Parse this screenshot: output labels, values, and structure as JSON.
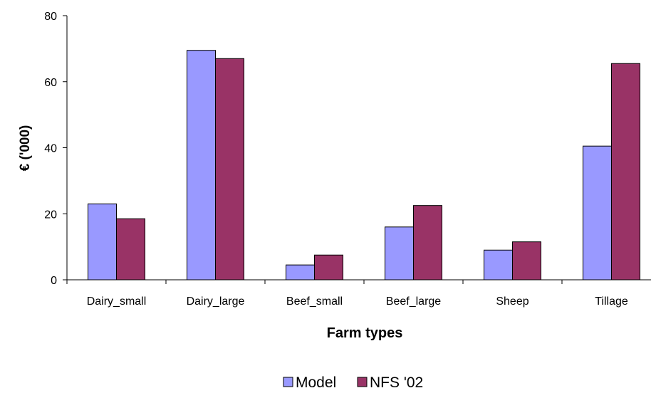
{
  "chart_data": {
    "type": "bar",
    "title": "",
    "xlabel": "Farm types",
    "ylabel": "€ ('000)",
    "categories": [
      "Dairy_small",
      "Dairy_large",
      "Beef_small",
      "Beef_large",
      "Sheep",
      "Tillage"
    ],
    "series": [
      {
        "name": "Model",
        "values": [
          23,
          69.5,
          4.5,
          16,
          9,
          40.5
        ],
        "color": "#9999ff"
      },
      {
        "name": "NFS '02",
        "values": [
          18.5,
          67,
          7.5,
          22.5,
          11.5,
          65.5
        ],
        "color": "#993366"
      }
    ],
    "ylim": [
      0,
      80
    ],
    "yticks": [
      0,
      20,
      40,
      60,
      80
    ],
    "grid": false,
    "legend_position": "bottom"
  }
}
